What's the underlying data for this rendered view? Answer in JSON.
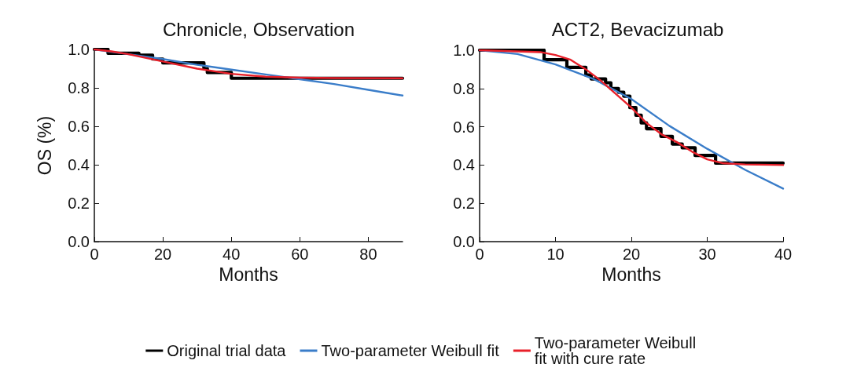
{
  "chart_data": [
    {
      "type": "line",
      "title": "Chronicle, Observation",
      "xlabel": "Months",
      "ylabel": "OS (%)",
      "xlim": [
        0,
        90
      ],
      "xticks": [
        0,
        20,
        40,
        60,
        80
      ],
      "ylim": [
        0,
        1
      ],
      "yticks": [
        {
          "value": 0,
          "label": "0.0"
        },
        {
          "value": 0.2,
          "label": "0.2"
        },
        {
          "value": 0.4,
          "label": "0.4"
        },
        {
          "value": 0.6,
          "label": "0.6"
        },
        {
          "value": 0.8,
          "label": "0.8"
        },
        {
          "value": 1,
          "label": "1.0"
        }
      ],
      "grid": false,
      "legend": "bottom",
      "marker": "none",
      "line_style": "solid",
      "series": [
        {
          "name": "Original trial data",
          "type": "step",
          "color": "#000000",
          "x": [
            0,
            4,
            13,
            17,
            20,
            32,
            33,
            40,
            90
          ],
          "values": [
            1,
            0.98,
            0.97,
            0.95,
            0.93,
            0.9,
            0.88,
            0.85,
            0.85
          ]
        },
        {
          "name": "Two-parameter Weibull fit",
          "color": "#3a7dc9",
          "x": [
            0,
            10,
            20,
            30,
            40,
            50,
            60,
            70,
            80,
            90
          ],
          "values": [
            1,
            0.975,
            0.95,
            0.92,
            0.895,
            0.87,
            0.845,
            0.82,
            0.79,
            0.76
          ]
        },
        {
          "name": "Two-parameter Weibull fit with cure rate",
          "color": "#e8202a",
          "x": [
            0,
            5,
            10,
            20,
            30,
            40,
            50,
            60,
            70,
            90
          ],
          "values": [
            1,
            0.99,
            0.975,
            0.937,
            0.9,
            0.873,
            0.858,
            0.853,
            0.851,
            0.85
          ]
        }
      ]
    },
    {
      "type": "line",
      "title": "ACT2, Bevacizumab",
      "xlabel": "Months",
      "xlim": [
        0,
        40
      ],
      "xticks": [
        0,
        10,
        20,
        30,
        40
      ],
      "ylim": [
        0,
        1
      ],
      "yticks": [
        {
          "value": 0,
          "label": "0.0"
        },
        {
          "value": 0.2,
          "label": "0.2"
        },
        {
          "value": 0.4,
          "label": "0.4"
        },
        {
          "value": 0.6,
          "label": "0.6"
        },
        {
          "value": 0.8,
          "label": "0.8"
        },
        {
          "value": 1,
          "label": "1.0"
        }
      ],
      "grid": false,
      "marker": "none",
      "line_style": "solid",
      "series": [
        {
          "name": "Original trial data",
          "type": "step",
          "color": "#000000",
          "x": [
            0,
            8.5,
            11.5,
            14,
            14.7,
            16.6,
            17.3,
            18.3,
            19,
            19.8,
            20.6,
            21.3,
            22,
            23.9,
            25.4,
            26.7,
            28.4,
            31.1,
            40
          ],
          "values": [
            1,
            0.95,
            0.91,
            0.87,
            0.85,
            0.83,
            0.8,
            0.78,
            0.76,
            0.7,
            0.66,
            0.62,
            0.59,
            0.55,
            0.51,
            0.49,
            0.45,
            0.41,
            0.41
          ]
        },
        {
          "name": "Two-parameter Weibull fit",
          "color": "#3a7dc9",
          "x": [
            0,
            5,
            10,
            15,
            20,
            25,
            30,
            35,
            40
          ],
          "values": [
            1,
            0.98,
            0.926,
            0.85,
            0.745,
            0.605,
            0.485,
            0.375,
            0.277
          ]
        },
        {
          "name": "Two-parameter Weibull fit with cure rate",
          "color": "#e8202a",
          "x": [
            0,
            8,
            10,
            12,
            14,
            16,
            18,
            20,
            22,
            24,
            26,
            28,
            30,
            32,
            35,
            40
          ],
          "values": [
            1,
            0.99,
            0.975,
            0.95,
            0.9,
            0.84,
            0.77,
            0.7,
            0.62,
            0.56,
            0.52,
            0.47,
            0.43,
            0.41,
            0.403,
            0.4
          ]
        }
      ]
    }
  ]
}
